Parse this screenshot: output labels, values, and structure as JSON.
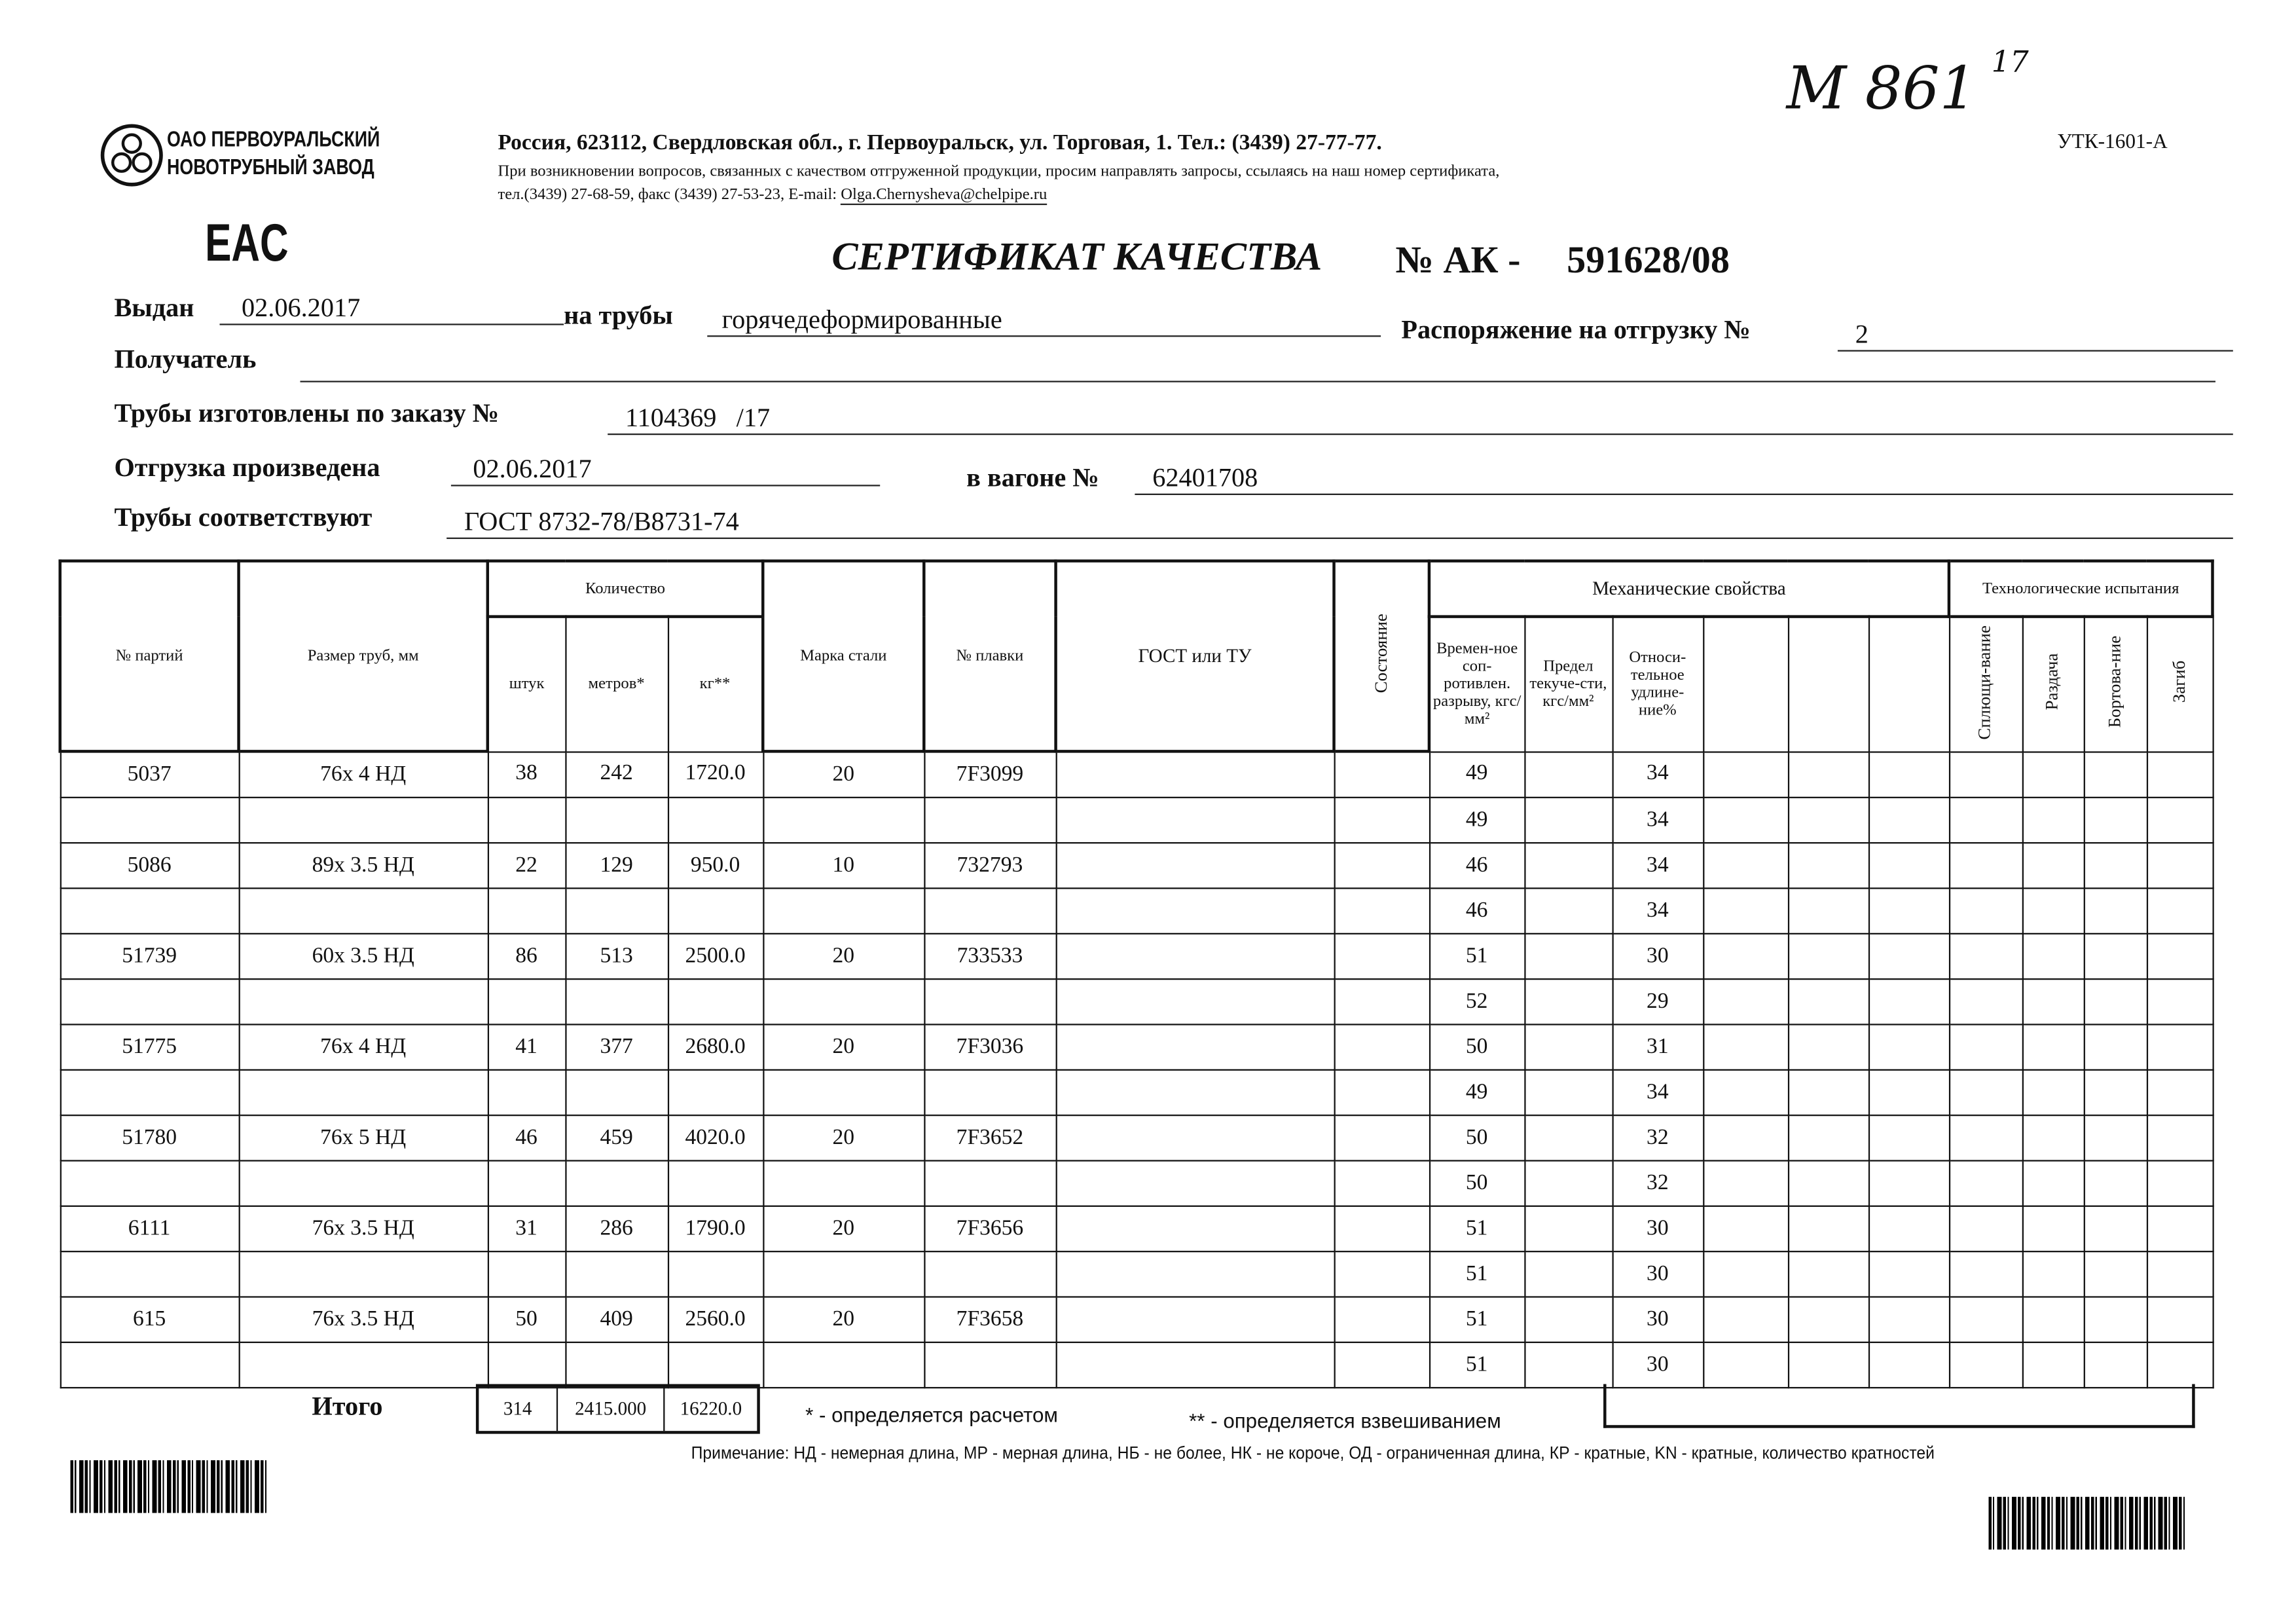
{
  "handwritten_number": "М 861",
  "handwritten_superscript": "17",
  "form_code": "УТК-1601-А",
  "company": {
    "line1": "ОАО ПЕРВОУРАЛЬСКИЙ",
    "line2": "НОВОТРУБНЫЙ ЗАВОД"
  },
  "eac_mark": "EAC",
  "address": "Россия, 623112, Свердловская обл., г. Первоуральск, ул. Торговая, 1. Тел.: (3439) 27-77-77.",
  "contact_note": "При возникновении вопросов, связанных с качеством отгруженной продукции, просим направлять запросы, ссылаясь на наш номер сертификата,",
  "contact_phones": "тел.(3439) 27-68-59, факс (3439) 27-53-23, E-mail:",
  "contact_email": "Olga.Chernysheva@chelpipe.ru",
  "title": "СЕРТИФИКАТ КАЧЕСТВА",
  "cert_number_label": "№ АК -",
  "cert_number": "591628/08",
  "fields": {
    "issued_label": "Выдан",
    "issued": "02.06.2017",
    "pipes_label": "на трубы",
    "pipes": "горячедеформированные",
    "order_shipping_label": "Распоряжение на отгрузку №",
    "order_shipping": "2",
    "recipient_label": "Получатель",
    "recipient": "",
    "made_by_order_label": "Трубы изготовлены по заказу №",
    "made_by_order": "1104369   /17",
    "shipped_label": "Отгрузка произведена",
    "shipped": "02.06.2017",
    "wagon_label": "в вагоне №",
    "wagon": "62401708",
    "conform_label": "Трубы соответствуют",
    "conform": "ГОСТ 8732-78/В8731-74"
  },
  "headers": {
    "lot": "№ партий",
    "size": "Размер труб, мм",
    "quantity": "Количество",
    "pcs": "штук",
    "meters": "метров*",
    "kg": "кг**",
    "steel": "Марка стали",
    "heat": "№ плавки",
    "gost": "ГОСТ или ТУ",
    "state": "Состояние",
    "mech": "Механические свойства",
    "tensile": "Времен-ное соп-ротивлен. разрыву, кгс/мм²",
    "yield": "Предел текуче-сти, кгс/мм²",
    "elong": "Относи-тельное удлине-ние%",
    "tech": "Технологические испытания",
    "flatten": "Сплющи-вание",
    "expand": "Раздача",
    "flange": "Бортова-ние",
    "bend": "Загиб"
  },
  "lots": [
    {
      "lot": "5037",
      "size": "76x 4 НД",
      "pcs": "38",
      "meters": "242",
      "kg": "1720.0",
      "steel": "20",
      "heat": "7F3099"
    },
    {
      "lot": "5086",
      "size": "89x 3.5 НД",
      "pcs": "22",
      "meters": "129",
      "kg": "950.0",
      "steel": "10",
      "heat": "732793"
    },
    {
      "lot": "51739",
      "size": "60x 3.5 НД",
      "pcs": "86",
      "meters": "513",
      "kg": "2500.0",
      "steel": "20",
      "heat": "733533"
    },
    {
      "lot": "51775",
      "size": "76x 4 НД",
      "pcs": "41",
      "meters": "377",
      "kg": "2680.0",
      "steel": "20",
      "heat": "7F3036"
    },
    {
      "lot": "51780",
      "size": "76x 5 НД",
      "pcs": "46",
      "meters": "459",
      "kg": "4020.0",
      "steel": "20",
      "heat": "7F3652"
    },
    {
      "lot": "6111",
      "size": "76x 3.5 НД",
      "pcs": "31",
      "meters": "286",
      "kg": "1790.0",
      "steel": "20",
      "heat": "7F3656"
    },
    {
      "lot": "615",
      "size": "76x 3.5 НД",
      "pcs": "50",
      "meters": "409",
      "kg": "2560.0",
      "steel": "20",
      "heat": "7F3658"
    }
  ],
  "mech_rows": [
    {
      "tensile": "49",
      "elong": "34"
    },
    {
      "tensile": "49",
      "elong": "34"
    },
    {
      "tensile": "46",
      "elong": "34"
    },
    {
      "tensile": "46",
      "elong": "34"
    },
    {
      "tensile": "51",
      "elong": "30"
    },
    {
      "tensile": "52",
      "elong": "29"
    },
    {
      "tensile": "50",
      "elong": "31"
    },
    {
      "tensile": "49",
      "elong": "34"
    },
    {
      "tensile": "50",
      "elong": "32"
    },
    {
      "tensile": "50",
      "elong": "32"
    },
    {
      "tensile": "51",
      "elong": "30"
    },
    {
      "tensile": "51",
      "elong": "30"
    },
    {
      "tensile": "51",
      "elong": "30"
    },
    {
      "tensile": "51",
      "elong": "30"
    }
  ],
  "totals": {
    "label": "Итого",
    "pcs": "314",
    "meters": "2415.000",
    "kg": "16220.0"
  },
  "footnote1": "* - определяется расчетом",
  "footnote2": "** - определяется взвешиванием",
  "note": "Примечание: НД - немерная длина, МР - мерная длина, НБ - не более, НК - не короче, ОД - ограниченная длина, КР - кратные, KN - кратные, количество кратностей"
}
